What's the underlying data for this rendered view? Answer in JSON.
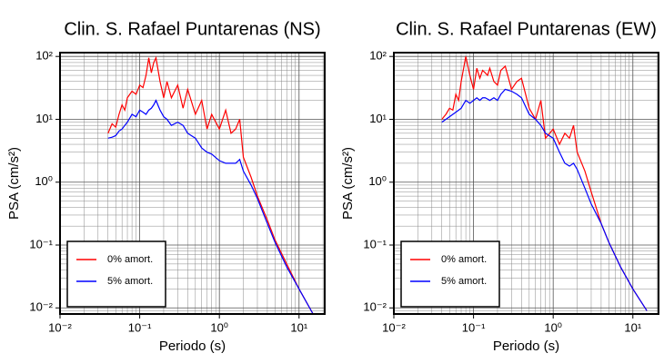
{
  "chart_data": [
    {
      "type": "line",
      "title": "Clin. S. Rafael Puntarenas (NS)",
      "xlabel": "Periodo (s)",
      "ylabel": "PSA (cm/s²)",
      "xscale": "log",
      "yscale": "log",
      "grid": true,
      "legend": "lower left",
      "xlim": [
        0.01,
        21
      ],
      "ylim": [
        0.008,
        115
      ],
      "xticks": [
        {
          "value": 0.01,
          "label": "10⁻²"
        },
        {
          "value": 0.1,
          "label": "10⁻¹"
        },
        {
          "value": 1,
          "label": "10⁰"
        },
        {
          "value": 10,
          "label": "10¹"
        }
      ],
      "yticks": [
        {
          "value": 0.01,
          "label": "10⁻²"
        },
        {
          "value": 0.1,
          "label": "10⁻¹"
        },
        {
          "value": 1,
          "label": "10⁰"
        },
        {
          "value": 10,
          "label": "10¹"
        },
        {
          "value": 100,
          "label": "10²"
        }
      ],
      "xminor": [
        0.02,
        0.03,
        0.04,
        0.05,
        0.06,
        0.07,
        0.08,
        0.09,
        0.2,
        0.3,
        0.4,
        0.5,
        0.6,
        0.7,
        0.8,
        0.9,
        2,
        3,
        4,
        5,
        6,
        7,
        8,
        9,
        20
      ],
      "yminor": [
        0.009,
        0.02,
        0.03,
        0.04,
        0.05,
        0.06,
        0.07,
        0.08,
        0.09,
        0.2,
        0.3,
        0.4,
        0.5,
        0.6,
        0.7,
        0.8,
        0.9,
        2,
        3,
        4,
        5,
        6,
        7,
        8,
        9,
        20,
        30,
        40,
        50,
        60,
        70,
        80,
        90
      ],
      "x": [
        0.04,
        0.045,
        0.05,
        0.055,
        0.06,
        0.065,
        0.07,
        0.08,
        0.09,
        0.1,
        0.11,
        0.12,
        0.13,
        0.14,
        0.15,
        0.16,
        0.18,
        0.2,
        0.22,
        0.25,
        0.3,
        0.35,
        0.4,
        0.5,
        0.6,
        0.7,
        0.8,
        1.0,
        1.2,
        1.4,
        1.6,
        1.8,
        2.0,
        2.5,
        3,
        4,
        5,
        7,
        10,
        15
      ],
      "series": [
        {
          "name": "0% amort.",
          "color": "#ff0000",
          "values": [
            6,
            8.5,
            7.5,
            12,
            17,
            14,
            22,
            28,
            25,
            35,
            32,
            50,
            95,
            55,
            80,
            95,
            40,
            22,
            40,
            22,
            35,
            15,
            30,
            12,
            20,
            7,
            12,
            7,
            14,
            6,
            7,
            10,
            2.5,
            1.2,
            0.6,
            0.25,
            0.12,
            0.05,
            0.02,
            0.008
          ]
        },
        {
          "name": "5% amort.",
          "color": "#0000ff",
          "values": [
            5,
            5.2,
            5.5,
            6.5,
            7,
            8,
            9,
            12,
            11,
            14,
            13,
            12,
            14,
            15,
            17,
            20,
            14,
            11,
            10,
            8,
            9,
            8,
            6,
            5,
            3.5,
            3,
            2.8,
            2.2,
            2,
            2,
            2,
            2.3,
            1.5,
            0.9,
            0.55,
            0.22,
            0.11,
            0.045,
            0.02,
            0.008
          ]
        }
      ]
    },
    {
      "type": "line",
      "title": "Clin. S. Rafael Puntarenas (EW)",
      "xlabel": "Periodo (s)",
      "ylabel": "PSA (cm/s²)",
      "xscale": "log",
      "yscale": "log",
      "grid": true,
      "legend": "lower left",
      "xlim": [
        0.01,
        21
      ],
      "ylim": [
        0.008,
        115
      ],
      "xticks": [
        {
          "value": 0.01,
          "label": "10⁻²"
        },
        {
          "value": 0.1,
          "label": "10⁻¹"
        },
        {
          "value": 1,
          "label": "10⁰"
        },
        {
          "value": 10,
          "label": "10¹"
        }
      ],
      "yticks": [
        {
          "value": 0.01,
          "label": "10⁻²"
        },
        {
          "value": 0.1,
          "label": "10⁻¹"
        },
        {
          "value": 1,
          "label": "10⁰"
        },
        {
          "value": 10,
          "label": "10¹"
        },
        {
          "value": 100,
          "label": "10²"
        }
      ],
      "xminor": [
        0.02,
        0.03,
        0.04,
        0.05,
        0.06,
        0.07,
        0.08,
        0.09,
        0.2,
        0.3,
        0.4,
        0.5,
        0.6,
        0.7,
        0.8,
        0.9,
        2,
        3,
        4,
        5,
        6,
        7,
        8,
        9,
        20
      ],
      "yminor": [
        0.009,
        0.02,
        0.03,
        0.04,
        0.05,
        0.06,
        0.07,
        0.08,
        0.09,
        0.2,
        0.3,
        0.4,
        0.5,
        0.6,
        0.7,
        0.8,
        0.9,
        2,
        3,
        4,
        5,
        6,
        7,
        8,
        9,
        20,
        30,
        40,
        50,
        60,
        70,
        80,
        90
      ],
      "x": [
        0.04,
        0.045,
        0.05,
        0.055,
        0.06,
        0.065,
        0.07,
        0.08,
        0.09,
        0.1,
        0.11,
        0.12,
        0.13,
        0.14,
        0.15,
        0.16,
        0.18,
        0.2,
        0.22,
        0.25,
        0.3,
        0.35,
        0.4,
        0.5,
        0.6,
        0.7,
        0.8,
        1.0,
        1.2,
        1.4,
        1.6,
        1.8,
        2.0,
        2.5,
        3,
        4,
        5,
        7,
        10,
        15
      ],
      "series": [
        {
          "name": "0% amort.",
          "color": "#ff0000",
          "values": [
            10,
            12,
            15,
            14,
            25,
            20,
            40,
            100,
            50,
            30,
            65,
            45,
            60,
            55,
            50,
            65,
            40,
            35,
            60,
            70,
            30,
            40,
            45,
            15,
            10,
            20,
            5,
            7,
            4,
            6,
            5,
            8,
            3,
            1.5,
            0.7,
            0.22,
            0.11,
            0.045,
            0.02,
            0.009
          ]
        },
        {
          "name": "5% amort.",
          "color": "#0000ff",
          "values": [
            9,
            10,
            11,
            12,
            13,
            14,
            15,
            20,
            18,
            20,
            22,
            20,
            22,
            22,
            21,
            20,
            22,
            20,
            25,
            30,
            28,
            25,
            22,
            12,
            10,
            8,
            6,
            5,
            3,
            2,
            1.8,
            2,
            1.6,
            0.8,
            0.45,
            0.22,
            0.11,
            0.045,
            0.02,
            0.009
          ]
        }
      ]
    }
  ]
}
